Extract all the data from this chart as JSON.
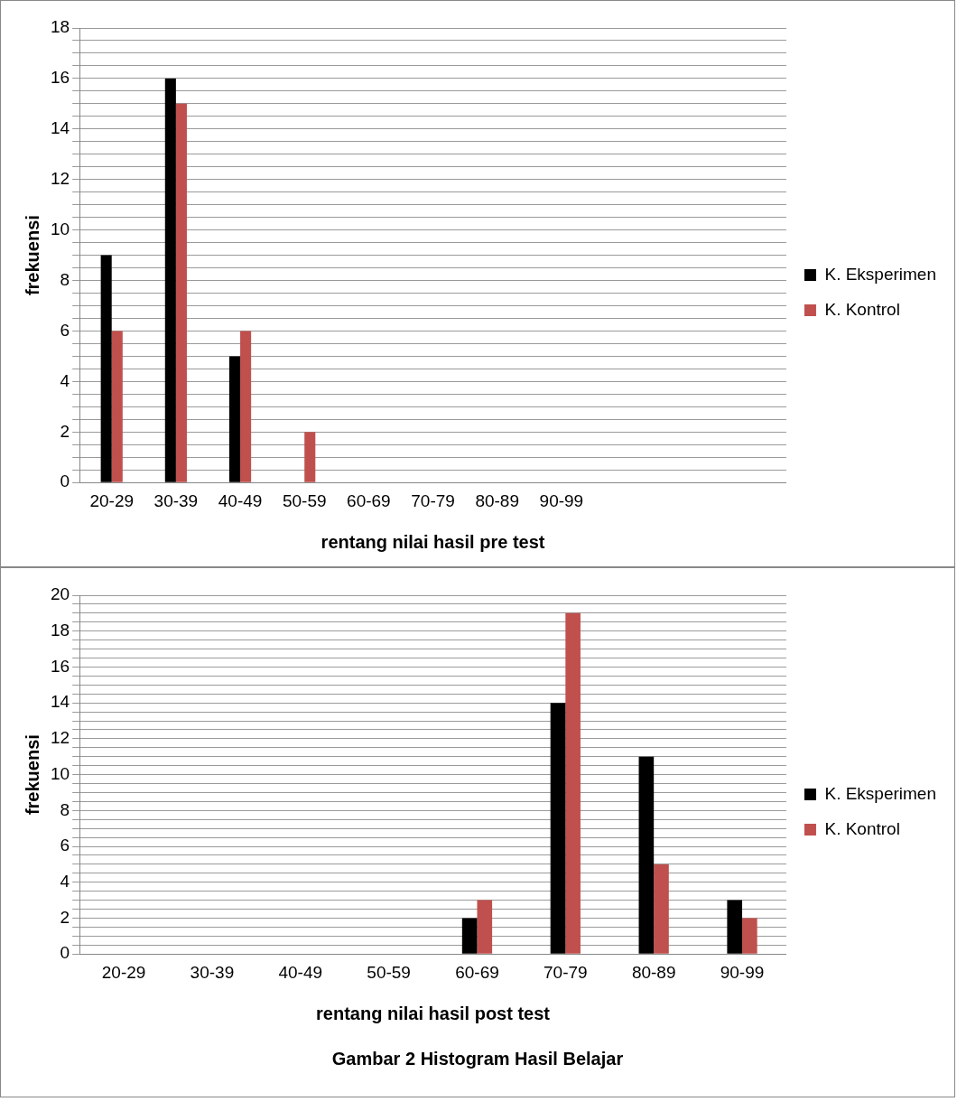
{
  "chart_data": [
    {
      "type": "bar",
      "xlabel": "rentang nilai hasil pre test",
      "ylabel": "frekuensi",
      "categories": [
        "20-29",
        "30-39",
        "40-49",
        "50-59",
        "60-69",
        "70-79",
        "80-89",
        "90-99",
        null,
        null,
        null
      ],
      "series": [
        {
          "name": "K. Eksperimen",
          "color": "#000000",
          "values": [
            9,
            16,
            5,
            0,
            0,
            0,
            0,
            0,
            null,
            null,
            null
          ]
        },
        {
          "name": "K. Kontrol",
          "color": "#c0504d",
          "values": [
            6,
            15,
            6,
            2,
            0,
            0,
            0,
            0,
            null,
            null,
            null
          ]
        }
      ],
      "ylim": [
        0,
        18
      ],
      "yticks": [
        0,
        {
          "value": 0.5,
          "label": null
        },
        {
          "value": 1,
          "label": null
        },
        {
          "value": 1.5,
          "label": null
        },
        2,
        {
          "value": 2.5,
          "label": null
        },
        {
          "value": 3,
          "label": null
        },
        {
          "value": 3.5,
          "label": null
        },
        4,
        {
          "value": 4.5,
          "label": null
        },
        {
          "value": 5,
          "label": null
        },
        {
          "value": 5.5,
          "label": null
        },
        6,
        {
          "value": 6.5,
          "label": null
        },
        {
          "value": 7,
          "label": null
        },
        {
          "value": 7.5,
          "label": null
        },
        8,
        {
          "value": 8.5,
          "label": null
        },
        {
          "value": 9,
          "label": null
        },
        {
          "value": 9.5,
          "label": null
        },
        10,
        {
          "value": 10.5,
          "label": null
        },
        {
          "value": 11,
          "label": null
        },
        {
          "value": 11.5,
          "label": null
        },
        12,
        {
          "value": 12.5,
          "label": null
        },
        {
          "value": 13,
          "label": null
        },
        {
          "value": 13.5,
          "label": null
        },
        14,
        {
          "value": 14.5,
          "label": null
        },
        {
          "value": 15,
          "label": null
        },
        {
          "value": 15.5,
          "label": null
        },
        16,
        {
          "value": 16.5,
          "label": null
        },
        {
          "value": 17,
          "label": null
        },
        {
          "value": 17.5,
          "label": null
        },
        18
      ],
      "grid": "y",
      "legend": "right"
    },
    {
      "type": "bar",
      "xlabel": "rentang nilai hasil post test",
      "ylabel": "frekuensi",
      "categories": [
        "20-29",
        "30-39",
        "40-49",
        "50-59",
        "60-69",
        "70-79",
        "80-89",
        "90-99"
      ],
      "series": [
        {
          "name": "K. Eksperimen",
          "color": "#000000",
          "values": [
            0,
            0,
            0,
            0,
            2,
            14,
            11,
            3
          ]
        },
        {
          "name": "K. Kontrol",
          "color": "#c0504d",
          "values": [
            0,
            0,
            0,
            0,
            3,
            19,
            5,
            2
          ]
        }
      ],
      "ylim": [
        0,
        20
      ],
      "yticks": [
        0,
        {
          "value": 0.5,
          "label": null
        },
        {
          "value": 1,
          "label": null
        },
        {
          "value": 1.5,
          "label": null
        },
        2,
        {
          "value": 2.5,
          "label": null
        },
        {
          "value": 3,
          "label": null
        },
        {
          "value": 3.5,
          "label": null
        },
        4,
        {
          "value": 4.5,
          "label": null
        },
        {
          "value": 5,
          "label": null
        },
        {
          "value": 5.5,
          "label": null
        },
        6,
        {
          "value": 6.5,
          "label": null
        },
        {
          "value": 7,
          "label": null
        },
        {
          "value": 7.5,
          "label": null
        },
        8,
        {
          "value": 8.5,
          "label": null
        },
        {
          "value": 9,
          "label": null
        },
        {
          "value": 9.5,
          "label": null
        },
        10,
        {
          "value": 10.5,
          "label": null
        },
        {
          "value": 11,
          "label": null
        },
        {
          "value": 11.5,
          "label": null
        },
        12,
        {
          "value": 12.5,
          "label": null
        },
        {
          "value": 13,
          "label": null
        },
        {
          "value": 13.5,
          "label": null
        },
        14,
        {
          "value": 14.5,
          "label": null
        },
        {
          "value": 15,
          "label": null
        },
        {
          "value": 15.5,
          "label": null
        },
        16,
        {
          "value": 16.5,
          "label": null
        },
        {
          "value": 17,
          "label": null
        },
        {
          "value": 17.5,
          "label": null
        },
        18,
        {
          "value": 18.5,
          "label": null
        },
        {
          "value": 19,
          "label": null
        },
        {
          "value": 19.5,
          "label": null
        },
        20
      ],
      "grid": "y",
      "legend": "right",
      "annotations": [
        "Gambar 2 Histogram Hasil Belajar"
      ]
    }
  ]
}
